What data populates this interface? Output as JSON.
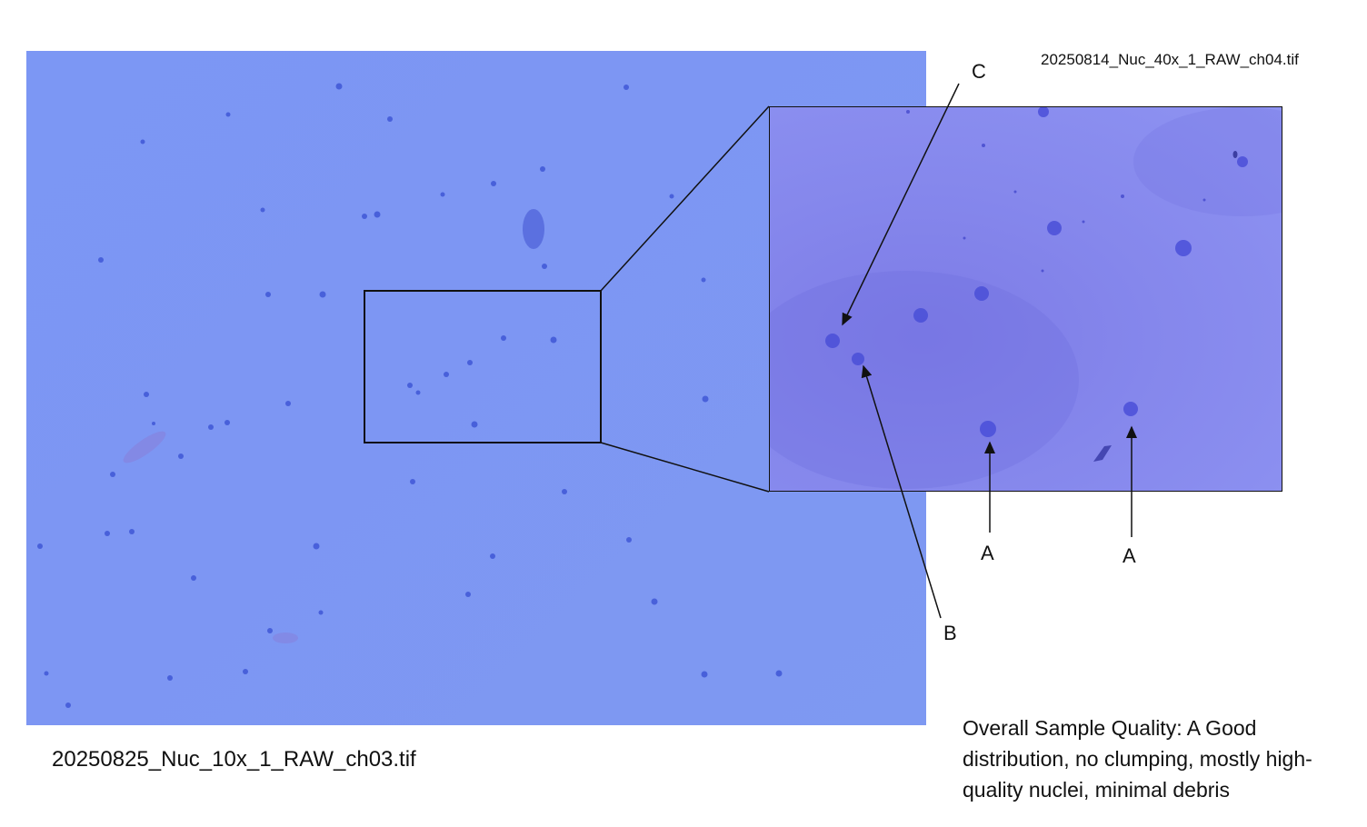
{
  "main_image": {
    "filename": "20250825_Nuc_10x_1_RAW_ch03.tif"
  },
  "inset_image": {
    "filename": "20250814_Nuc_40x_1_RAW_ch04.tif"
  },
  "annotations": {
    "marker_c": "C",
    "marker_b": "B",
    "marker_a1": "A",
    "marker_a2": "A"
  },
  "quality_summary": "Overall Sample Quality: A Good distribution, no clumping, mostly high-quality nuclei, minimal debris",
  "colors": {
    "main_field": "#7c97f4",
    "inset_field": "#8587ec",
    "nucleus": "#3a4fd0",
    "outline": "#111111"
  }
}
